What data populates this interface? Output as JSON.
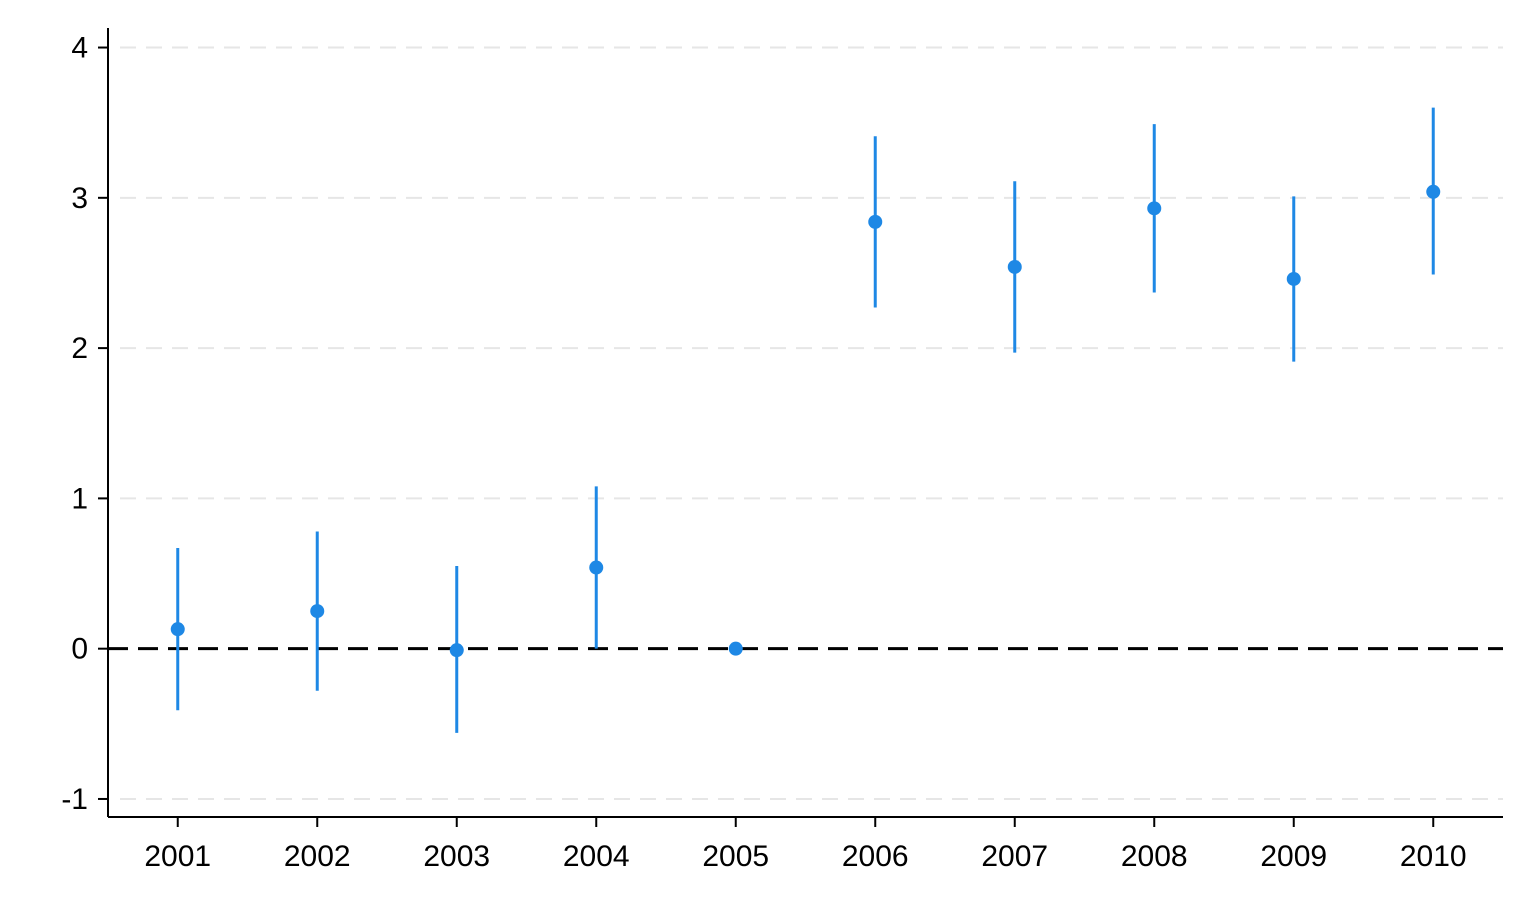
{
  "chart_data": {
    "type": "scatter",
    "title": "",
    "xlabel": "",
    "ylabel": "",
    "x": [
      2001,
      2002,
      2003,
      2004,
      2005,
      2006,
      2007,
      2008,
      2009,
      2010
    ],
    "x_tick_labels": [
      "2001",
      "2002",
      "2003",
      "2004",
      "2005",
      "2006",
      "2007",
      "2008",
      "2009",
      "2010"
    ],
    "series": [
      {
        "estimate": [
          0.13,
          0.25,
          -0.01,
          0.54,
          0.0,
          2.84,
          2.54,
          2.93,
          2.46,
          3.04
        ],
        "ci_lower": [
          -0.41,
          -0.28,
          -0.56,
          0.0,
          0.0,
          2.27,
          1.97,
          2.37,
          1.91,
          2.49
        ],
        "ci_upper": [
          0.67,
          0.78,
          0.55,
          1.08,
          0.0,
          3.41,
          3.11,
          3.49,
          3.01,
          3.6
        ],
        "color": "#1e88e5"
      }
    ],
    "y_ticks": [
      -1,
      0,
      1,
      2,
      3,
      4
    ],
    "y_tick_labels": [
      "-1",
      "0",
      "1",
      "2",
      "3",
      "4"
    ],
    "ylim": [
      -1.12,
      4.13
    ],
    "xlim": [
      2000.5,
      2010.5
    ],
    "reference_line_y": 0,
    "grid": true,
    "colors": {
      "point": "#1e88e5",
      "grid": "#e6e6e6",
      "axis": "#000000",
      "reference": "#000000"
    }
  }
}
